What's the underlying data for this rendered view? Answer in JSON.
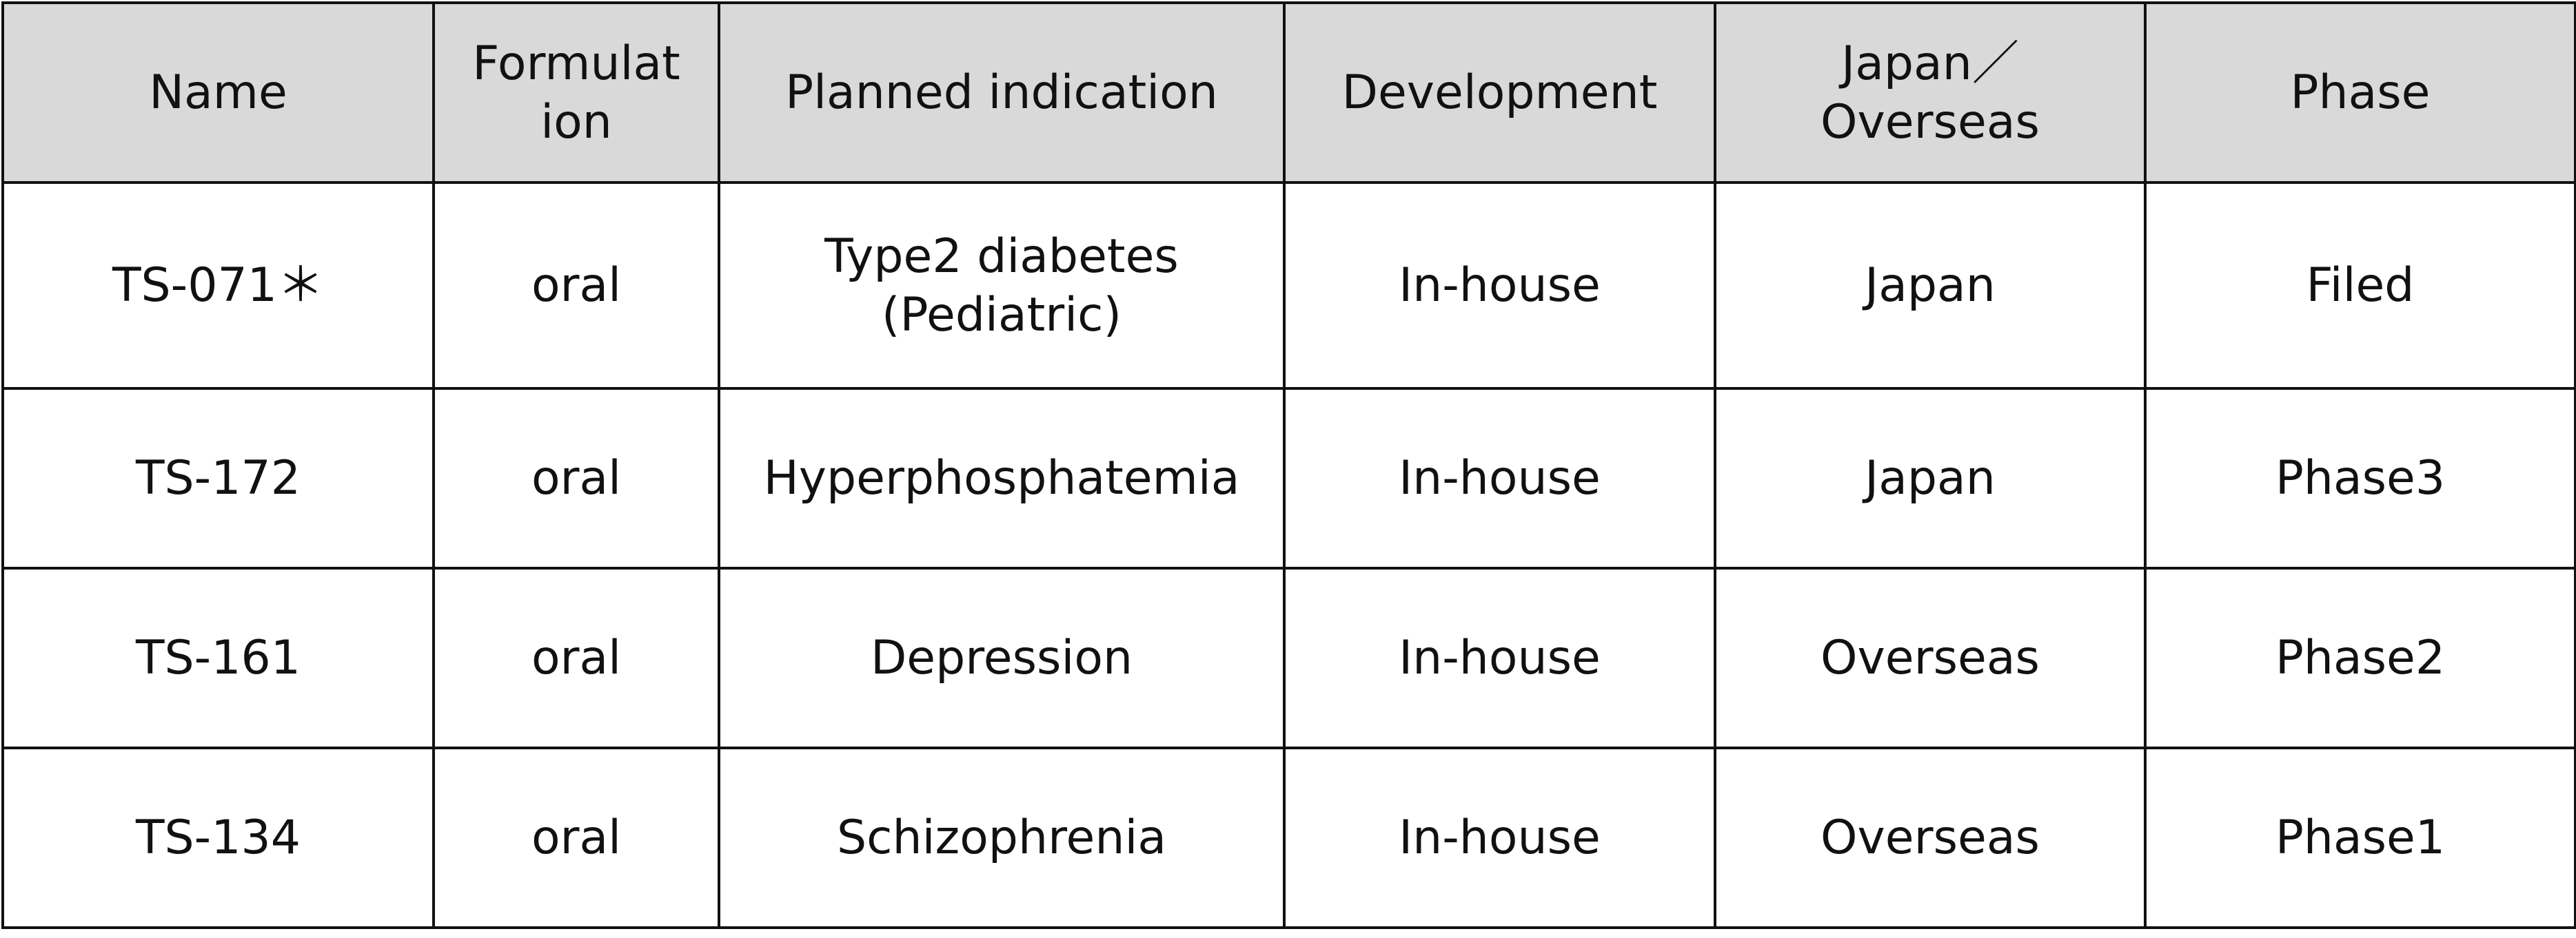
{
  "table": {
    "header": [
      "Name",
      "Formulat\nion",
      "Planned indication",
      "Development",
      "Japan／\nOverseas",
      "Phase"
    ],
    "rows": [
      [
        "TS-071＊",
        "oral",
        "Type2 diabetes\n(Pediatric)",
        "In-house",
        "Japan",
        "Filed"
      ],
      [
        "TS-172",
        "oral",
        "Hyperphosphatemia",
        "In-house",
        "Japan",
        "Phase3"
      ],
      [
        "TS-161",
        "oral",
        "Depression",
        "In-house",
        "Overseas",
        "Phase2"
      ],
      [
        "TS-134",
        "oral",
        "Schizophrenia",
        "In-house",
        "Overseas",
        "Phase1"
      ]
    ]
  }
}
